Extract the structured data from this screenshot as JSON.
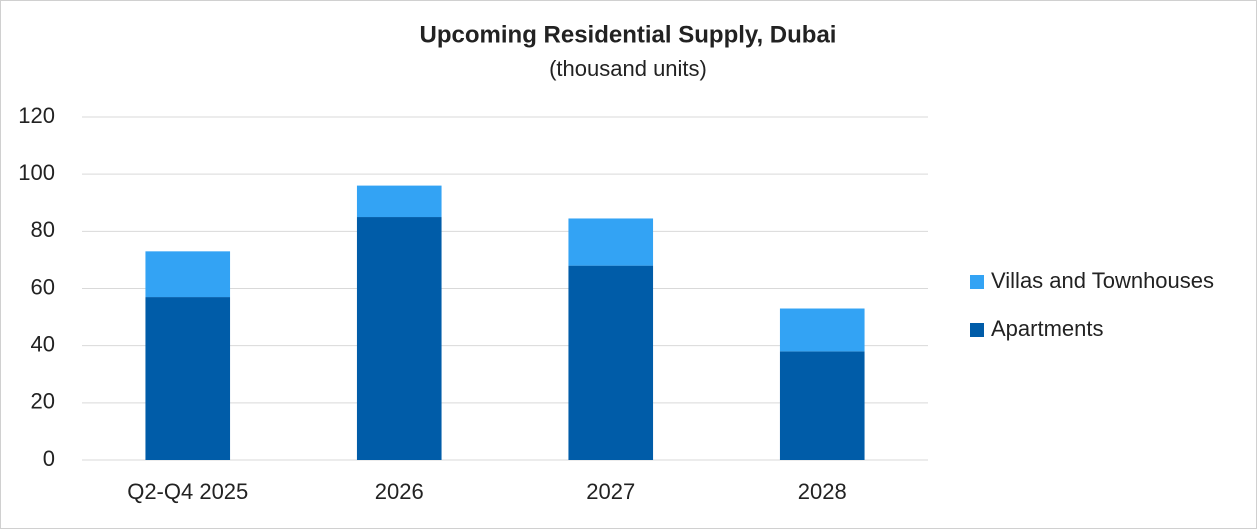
{
  "chart_data": {
    "type": "stacked_bar",
    "title": "Upcoming Residential Supply, Dubai",
    "subtitle": "(thousand units)",
    "categories": [
      "Q2-Q4 2025",
      "2026",
      "2027",
      "2028"
    ],
    "series": [
      {
        "name": "Apartments",
        "color": "#005ca8",
        "values": [
          57,
          85,
          68,
          38
        ]
      },
      {
        "name": "Villas and Townhouses",
        "color": "#33a3f4",
        "values": [
          16,
          11,
          16.5,
          15
        ]
      }
    ],
    "ylim": [
      0,
      120
    ],
    "yticks": [
      0,
      20,
      40,
      60,
      80,
      100,
      120
    ],
    "grid": true,
    "legend": "right"
  }
}
